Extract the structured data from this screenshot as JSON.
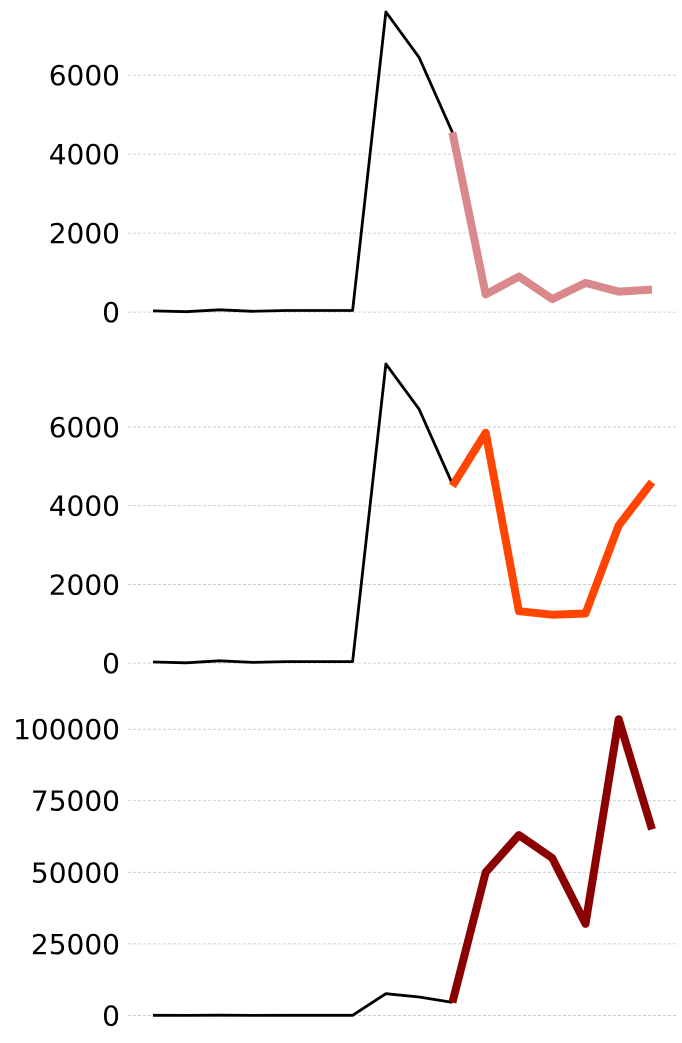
{
  "chart_data": [
    {
      "type": "line",
      "x": [
        0,
        1,
        2,
        3,
        4,
        5,
        6,
        7,
        8,
        9,
        10,
        11,
        12,
        13,
        14,
        15
      ],
      "yticks": [
        "0",
        "2000",
        "4000",
        "6000"
      ],
      "ylim": [
        -250,
        7700
      ],
      "grid": true,
      "series": [
        {
          "role": "history",
          "color": "#000000",
          "values": [
            30,
            10,
            60,
            20,
            40,
            40,
            40,
            7600,
            6450,
            4550,
            null,
            null,
            null,
            null,
            null,
            null
          ]
        },
        {
          "role": "forecast",
          "color": "#d9888c",
          "values": [
            null,
            null,
            null,
            null,
            null,
            null,
            null,
            null,
            null,
            4550,
            450,
            900,
            330,
            740,
            520,
            570
          ]
        }
      ]
    },
    {
      "type": "line",
      "x": [
        0,
        1,
        2,
        3,
        4,
        5,
        6,
        7,
        8,
        9,
        10,
        11,
        12,
        13,
        14,
        15
      ],
      "yticks": [
        "0",
        "2000",
        "4000",
        "6000"
      ],
      "ylim": [
        -250,
        7700
      ],
      "grid": true,
      "series": [
        {
          "role": "history",
          "color": "#000000",
          "values": [
            30,
            10,
            60,
            20,
            40,
            40,
            40,
            7600,
            6450,
            4550,
            null,
            null,
            null,
            null,
            null,
            null
          ]
        },
        {
          "role": "forecast",
          "color": "#ff4500",
          "values": [
            null,
            null,
            null,
            null,
            null,
            null,
            null,
            null,
            null,
            4500,
            5850,
            1320,
            1230,
            1260,
            3500,
            4600
          ]
        }
      ]
    },
    {
      "type": "line",
      "x": [
        0,
        1,
        2,
        3,
        4,
        5,
        6,
        7,
        8,
        9,
        10,
        11,
        12,
        13,
        14,
        15
      ],
      "yticks": [
        "0",
        "25000",
        "50000",
        "75000",
        "100000"
      ],
      "ylim": [
        -3000,
        106000
      ],
      "grid": true,
      "series": [
        {
          "role": "history",
          "color": "#000000",
          "values": [
            30,
            10,
            60,
            20,
            40,
            40,
            40,
            7600,
            6450,
            4550,
            null,
            null,
            null,
            null,
            null,
            null
          ]
        },
        {
          "role": "forecast",
          "color": "#8b0000",
          "values": [
            null,
            null,
            null,
            null,
            null,
            null,
            null,
            null,
            null,
            4500,
            50000,
            63000,
            55000,
            32000,
            103500,
            65000
          ]
        }
      ]
    }
  ]
}
